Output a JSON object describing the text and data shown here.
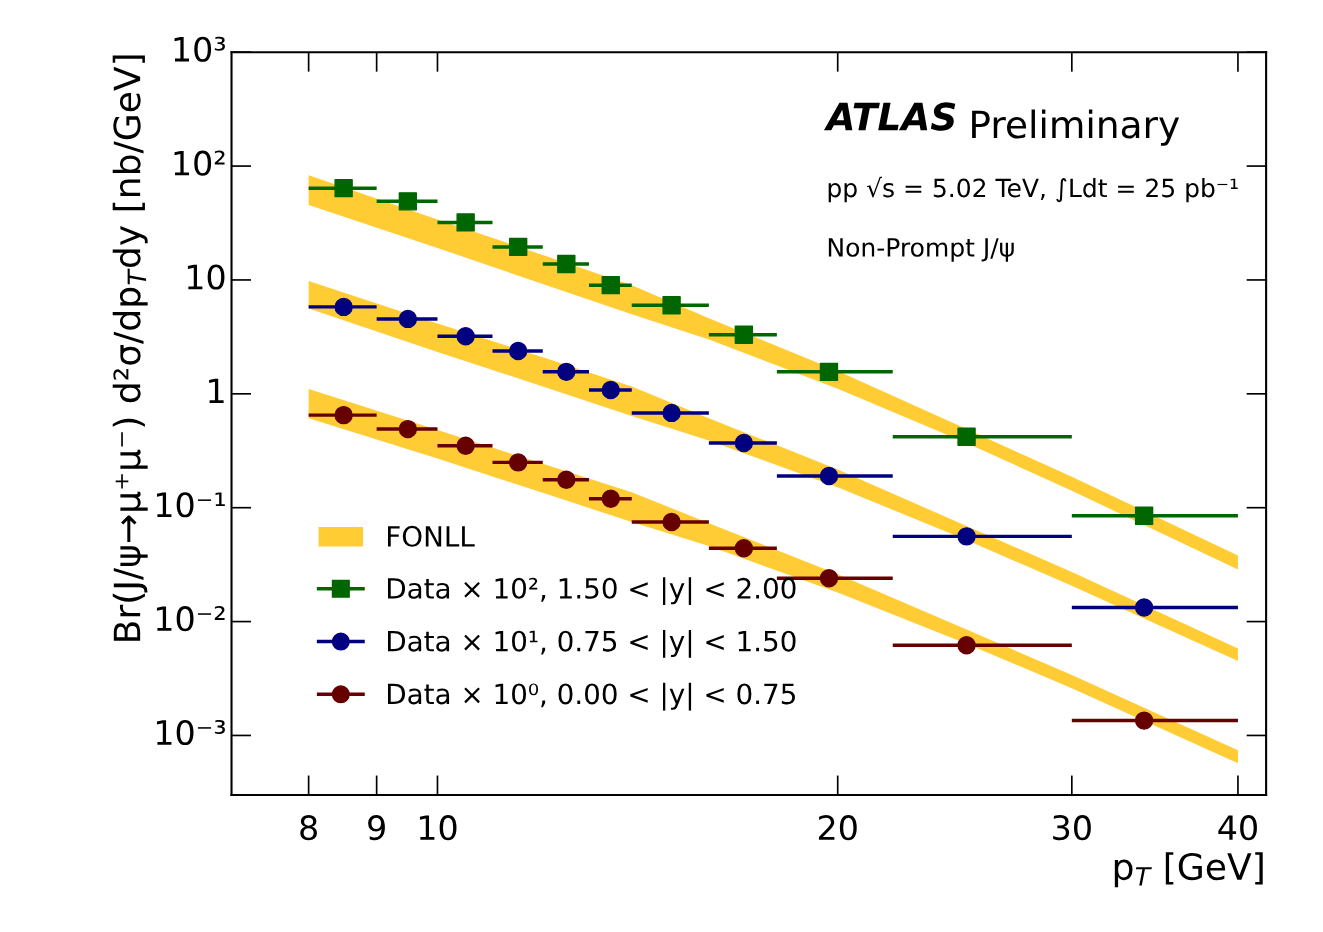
{
  "chart_data": {
    "type": "scatter",
    "xlabel": "p$_{T}$ [GeV]",
    "ylabel": "Br(J/ψ→μ⁺μ⁻) d²σ/dp$_{T}$dy [nb/GeV]",
    "annotations": [
      "ATLAS",
      "Preliminary",
      "pp √s = 5.02 TeV, ∫Ldt = 25 pb⁻¹",
      "Non-Prompt J/ψ"
    ],
    "log": "xy",
    "xlim": [
      7,
      42
    ],
    "xticks": [
      8,
      9,
      10,
      20,
      30,
      40
    ],
    "ylim": [
      0.0003,
      1000
    ],
    "yticks": [
      {
        "value": 0.001,
        "label": "10⁻³"
      },
      {
        "value": 0.01,
        "label": "10⁻²"
      },
      {
        "value": 0.1,
        "label": "10⁻¹"
      },
      1,
      10,
      {
        "value": 100,
        "label": "10²"
      },
      {
        "value": 1000,
        "label": "10³"
      }
    ],
    "grid": false,
    "legend": "bottom left",
    "series": [
      {
        "type": "line",
        "name": "FONLL",
        "color": "#ffcc33",
        "x": [
          8,
          10,
          12,
          14,
          16,
          20,
          25,
          30,
          40
        ],
        "values": [
          null,
          null,
          null,
          null,
          null,
          null,
          null,
          null,
          null
        ],
        "upper": [
          83,
          34,
          16.6,
          9.0,
          4.6,
          1.59,
          0.49,
          0.187,
          0.038
        ],
        "lower": [
          45.5,
          19.1,
          9.2,
          5.0,
          3.0,
          1.11,
          0.37,
          0.141,
          0.0286
        ]
      },
      {
        "type": "line",
        "color": "#ffcc34",
        "x": [
          8,
          10,
          12,
          14,
          16,
          20,
          25,
          30,
          40
        ],
        "values": [
          null,
          null,
          null,
          null,
          null,
          null,
          null,
          null,
          null
        ],
        "upper": [
          9.8,
          4.15,
          2.09,
          1.16,
          0.61,
          0.217,
          0.069,
          0.0273,
          0.0058
        ],
        "lower": [
          5.6,
          2.33,
          1.16,
          0.64,
          0.39,
          0.151,
          0.052,
          0.0206,
          0.0045
        ]
      },
      {
        "type": "line",
        "color": "#ffcc35",
        "x": [
          8,
          10,
          12,
          14,
          16,
          20,
          25,
          30,
          40
        ],
        "values": [
          null,
          null,
          null,
          null,
          null,
          null,
          null,
          null,
          null
        ],
        "upper": [
          1.1,
          0.48,
          0.243,
          0.137,
          0.073,
          0.026,
          0.0085,
          0.0034,
          0.00074
        ],
        "lower": [
          0.61,
          0.27,
          0.135,
          0.075,
          0.046,
          0.018,
          0.0064,
          0.0026,
          0.00057
        ]
      },
      {
        "name": "Data × 10², 1.50 < |y| < 2.00",
        "color": "#006600",
        "marker": "square",
        "x": [
          8.5,
          9.5,
          10.5,
          11.5,
          12.5,
          13.5,
          15,
          17,
          19.7,
          25,
          34
        ],
        "values": [
          64,
          49,
          32,
          19.5,
          13.8,
          9.0,
          6.0,
          3.3,
          1.56,
          0.42,
          0.085
        ],
        "xerrors": [
          [
            8,
            9
          ],
          [
            9,
            10
          ],
          [
            10,
            11
          ],
          [
            11,
            12
          ],
          [
            12,
            13
          ],
          [
            13,
            14
          ],
          [
            14,
            16
          ],
          [
            16,
            18
          ],
          [
            18,
            22
          ],
          [
            22,
            30
          ],
          [
            30,
            40
          ]
        ]
      },
      {
        "name": "Data × 10¹, 0.75 < |y| < 1.50",
        "color": "#000080",
        "marker": "circle",
        "x": [
          8.5,
          9.5,
          10.5,
          11.5,
          12.5,
          13.5,
          15,
          17,
          19.7,
          25,
          34
        ],
        "values": [
          5.8,
          4.55,
          3.2,
          2.38,
          1.56,
          1.08,
          0.68,
          0.37,
          0.19,
          0.056,
          0.0133
        ],
        "xerrors": [
          [
            8,
            9
          ],
          [
            9,
            10
          ],
          [
            10,
            11
          ],
          [
            11,
            12
          ],
          [
            12,
            13
          ],
          [
            13,
            14
          ],
          [
            14,
            16
          ],
          [
            16,
            18
          ],
          [
            18,
            22
          ],
          [
            22,
            30
          ],
          [
            30,
            40
          ]
        ]
      },
      {
        "name": "Data × 10⁰, 0.00 < |y| < 0.75",
        "color": "#660000",
        "marker": "circle",
        "x": [
          8.5,
          9.5,
          10.5,
          11.5,
          12.5,
          13.5,
          15,
          17,
          19.7,
          25,
          34
        ],
        "values": [
          0.65,
          0.49,
          0.35,
          0.25,
          0.176,
          0.12,
          0.075,
          0.044,
          0.024,
          0.0062,
          0.00135
        ],
        "xerrors": [
          [
            8,
            9
          ],
          [
            9,
            10
          ],
          [
            10,
            11
          ],
          [
            11,
            12
          ],
          [
            12,
            13
          ],
          [
            13,
            14
          ],
          [
            14,
            16
          ],
          [
            16,
            18
          ],
          [
            18,
            22
          ],
          [
            22,
            30
          ],
          [
            30,
            40
          ]
        ]
      }
    ]
  }
}
